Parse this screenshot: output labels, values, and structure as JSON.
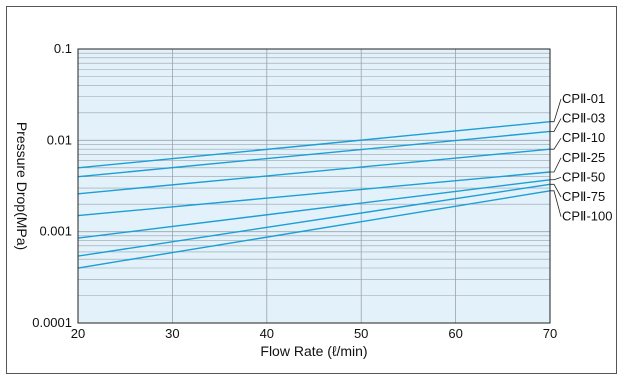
{
  "chart_data": {
    "type": "line",
    "xlabel": "Flow Rate (ℓ/min)",
    "ylabel": "Pressure Drop(MPa)",
    "xlim": [
      20,
      70
    ],
    "ylim": [
      0.0001,
      0.1
    ],
    "y_scale": "log",
    "x_ticks": [
      "20",
      "30",
      "40",
      "50",
      "60",
      "70"
    ],
    "y_ticks": [
      "0.0001",
      "0.001",
      "0.01",
      "0.1"
    ],
    "grid": true,
    "legend_placement": "right, labels at line ends",
    "plot_background": "#e3f1fb",
    "line_color": "#1a9fd6",
    "series": [
      {
        "name": "CPⅡ-01",
        "x": [
          20,
          70
        ],
        "y": [
          0.005,
          0.016
        ]
      },
      {
        "name": "CPⅡ-03",
        "x": [
          20,
          70
        ],
        "y": [
          0.004,
          0.0125
        ]
      },
      {
        "name": "CPⅡ-10",
        "x": [
          20,
          70
        ],
        "y": [
          0.0026,
          0.008
        ]
      },
      {
        "name": "CPⅡ-25",
        "x": [
          20,
          70
        ],
        "y": [
          0.0015,
          0.0045
        ]
      },
      {
        "name": "CPⅡ-50",
        "x": [
          20,
          70
        ],
        "y": [
          0.00085,
          0.0037
        ]
      },
      {
        "name": "CPⅡ-75",
        "x": [
          20,
          70
        ],
        "y": [
          0.00054,
          0.0033
        ]
      },
      {
        "name": "CPⅡ-100",
        "x": [
          20,
          70
        ],
        "y": [
          0.0004,
          0.0028
        ]
      }
    ]
  }
}
